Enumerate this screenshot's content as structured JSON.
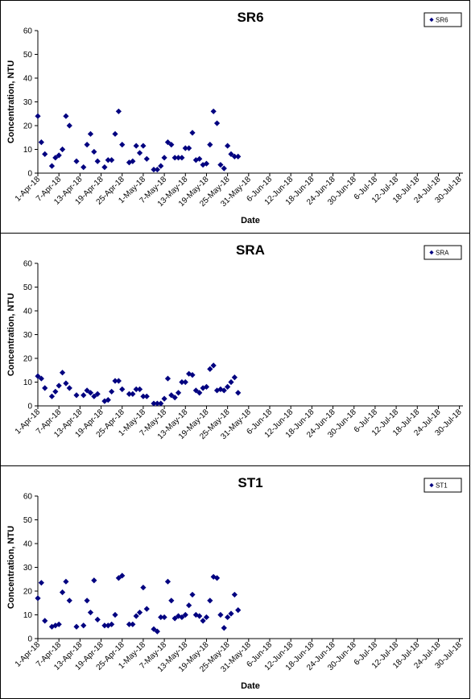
{
  "chart_data": [
    {
      "type": "scatter",
      "title": "SR6",
      "xlabel": "Date",
      "ylabel": "Concentration, NTU",
      "ylim": [
        0,
        60
      ],
      "yticks": [
        0,
        10,
        20,
        30,
        40,
        50,
        60
      ],
      "xlim": [
        "2018-04-01",
        "2018-07-31"
      ],
      "xtick_labels": [
        "1-Apr-18",
        "7-Apr-18",
        "13-Apr-18",
        "19-Apr-18",
        "25-Apr-18",
        "1-May-18",
        "7-May-18",
        "13-May-18",
        "19-May-18",
        "25-May-18",
        "31-May-18",
        "6-Jun-18",
        "12-Jun-18",
        "18-Jun-18",
        "24-Jun-18",
        "30-Jun-18",
        "6-Jul-18",
        "12-Jul-18",
        "18-Jul-18",
        "24-Jul-18",
        "30-Jul-18"
      ],
      "legend_position": "top-right",
      "marker_color": "#000080",
      "series": [
        {
          "name": "SR6",
          "points": [
            [
              "2018-04-01",
              24
            ],
            [
              "2018-04-02",
              13
            ],
            [
              "2018-04-03",
              8
            ],
            [
              "2018-04-05",
              3
            ],
            [
              "2018-04-06",
              6.5
            ],
            [
              "2018-04-07",
              7.5
            ],
            [
              "2018-04-08",
              10
            ],
            [
              "2018-04-09",
              24
            ],
            [
              "2018-04-10",
              20
            ],
            [
              "2018-04-12",
              5
            ],
            [
              "2018-04-14",
              2.5
            ],
            [
              "2018-04-15",
              12
            ],
            [
              "2018-04-16",
              16.5
            ],
            [
              "2018-04-17",
              9
            ],
            [
              "2018-04-18",
              5
            ],
            [
              "2018-04-20",
              2.5
            ],
            [
              "2018-04-21",
              5.5
            ],
            [
              "2018-04-22",
              5.5
            ],
            [
              "2018-04-23",
              16.5
            ],
            [
              "2018-04-24",
              26
            ],
            [
              "2018-04-25",
              12
            ],
            [
              "2018-04-27",
              4.5
            ],
            [
              "2018-04-28",
              5
            ],
            [
              "2018-04-29",
              11.5
            ],
            [
              "2018-04-30",
              8.5
            ],
            [
              "2018-05-01",
              11.5
            ],
            [
              "2018-05-02",
              6
            ],
            [
              "2018-05-04",
              1.5
            ],
            [
              "2018-05-05",
              1.5
            ],
            [
              "2018-05-06",
              3
            ],
            [
              "2018-05-07",
              6.5
            ],
            [
              "2018-05-08",
              13
            ],
            [
              "2018-05-09",
              12
            ],
            [
              "2018-05-10",
              6.5
            ],
            [
              "2018-05-11",
              6.5
            ],
            [
              "2018-05-12",
              6.5
            ],
            [
              "2018-05-13",
              10.5
            ],
            [
              "2018-05-14",
              10.5
            ],
            [
              "2018-05-15",
              17
            ],
            [
              "2018-05-16",
              5.5
            ],
            [
              "2018-05-17",
              6
            ],
            [
              "2018-05-18",
              3.5
            ],
            [
              "2018-05-19",
              4
            ],
            [
              "2018-05-20",
              12
            ],
            [
              "2018-05-21",
              26
            ],
            [
              "2018-05-22",
              21
            ],
            [
              "2018-05-23",
              3.5
            ],
            [
              "2018-05-24",
              2
            ],
            [
              "2018-05-25",
              11.5
            ],
            [
              "2018-05-26",
              8
            ],
            [
              "2018-05-27",
              7
            ],
            [
              "2018-05-28",
              7
            ]
          ]
        }
      ]
    },
    {
      "type": "scatter",
      "title": "SRA",
      "xlabel": "",
      "ylabel": "Concentration, NTU",
      "ylim": [
        0,
        60
      ],
      "yticks": [
        0,
        10,
        20,
        30,
        40,
        50,
        60
      ],
      "xlim": [
        "2018-04-01",
        "2018-07-31"
      ],
      "xtick_labels": [
        "1-Apr-18",
        "7-Apr-18",
        "13-Apr-18",
        "19-Apr-18",
        "25-Apr-18",
        "1-May-18",
        "7-May-18",
        "13-May-18",
        "19-May-18",
        "25-May-18",
        "31-May-18",
        "6-Jun-18",
        "12-Jun-18",
        "18-Jun-18",
        "24-Jun-18",
        "30-Jun-18",
        "6-Jul-18",
        "12-Jul-18",
        "18-Jul-18",
        "24-Jul-18",
        "30-Jul-18"
      ],
      "legend_position": "top-right",
      "marker_color": "#000080",
      "series": [
        {
          "name": "SRA",
          "points": [
            [
              "2018-04-01",
              12.5
            ],
            [
              "2018-04-02",
              11.5
            ],
            [
              "2018-04-03",
              7.5
            ],
            [
              "2018-04-05",
              4
            ],
            [
              "2018-04-06",
              6
            ],
            [
              "2018-04-07",
              8.5
            ],
            [
              "2018-04-08",
              14
            ],
            [
              "2018-04-09",
              9.5
            ],
            [
              "2018-04-10",
              7.5
            ],
            [
              "2018-04-12",
              4.5
            ],
            [
              "2018-04-14",
              4.5
            ],
            [
              "2018-04-15",
              6.5
            ],
            [
              "2018-04-16",
              5.5
            ],
            [
              "2018-04-17",
              4
            ],
            [
              "2018-04-18",
              5
            ],
            [
              "2018-04-20",
              2
            ],
            [
              "2018-04-21",
              2.5
            ],
            [
              "2018-04-22",
              6
            ],
            [
              "2018-04-23",
              10.5
            ],
            [
              "2018-04-24",
              10.5
            ],
            [
              "2018-04-25",
              7
            ],
            [
              "2018-04-27",
              5
            ],
            [
              "2018-04-28",
              5
            ],
            [
              "2018-04-29",
              7
            ],
            [
              "2018-04-30",
              7
            ],
            [
              "2018-05-01",
              4
            ],
            [
              "2018-05-02",
              4
            ],
            [
              "2018-05-04",
              1
            ],
            [
              "2018-05-05",
              1
            ],
            [
              "2018-05-06",
              1
            ],
            [
              "2018-05-07",
              3
            ],
            [
              "2018-05-08",
              11.5
            ],
            [
              "2018-05-09",
              4.5
            ],
            [
              "2018-05-10",
              3.5
            ],
            [
              "2018-05-11",
              5.5
            ],
            [
              "2018-05-12",
              10
            ],
            [
              "2018-05-13",
              10
            ],
            [
              "2018-05-14",
              13.5
            ],
            [
              "2018-05-15",
              13
            ],
            [
              "2018-05-16",
              6.5
            ],
            [
              "2018-05-17",
              5.5
            ],
            [
              "2018-05-18",
              7.5
            ],
            [
              "2018-05-19",
              8
            ],
            [
              "2018-05-20",
              15.5
            ],
            [
              "2018-05-21",
              17
            ],
            [
              "2018-05-22",
              6.5
            ],
            [
              "2018-05-23",
              7
            ],
            [
              "2018-05-24",
              6.5
            ],
            [
              "2018-05-25",
              8
            ],
            [
              "2018-05-26",
              10
            ],
            [
              "2018-05-27",
              12
            ],
            [
              "2018-05-28",
              5.5
            ]
          ]
        }
      ]
    },
    {
      "type": "scatter",
      "title": "ST1",
      "xlabel": "Date",
      "ylabel": "Concentration, NTU",
      "ylim": [
        0,
        60
      ],
      "yticks": [
        0,
        10,
        20,
        30,
        40,
        50,
        60
      ],
      "xlim": [
        "2018-04-01",
        "2018-07-31"
      ],
      "xtick_labels": [
        "1-Apr-18",
        "7-Apr-18",
        "13-Apr-18",
        "19-Apr-18",
        "25-Apr-18",
        "1-May-18",
        "7-May-18",
        "13-May-18",
        "19-May-18",
        "25-May-18",
        "31-May-18",
        "6-Jun-18",
        "12-Jun-18",
        "18-Jun-18",
        "24-Jun-18",
        "30-Jun-18",
        "6-Jul-18",
        "12-Jul-18",
        "18-Jul-18",
        "24-Jul-18",
        "30-Jul-18"
      ],
      "legend_position": "top-right",
      "marker_color": "#000080",
      "series": [
        {
          "name": "ST1",
          "points": [
            [
              "2018-04-01",
              17
            ],
            [
              "2018-04-02",
              23.5
            ],
            [
              "2018-04-03",
              7.5
            ],
            [
              "2018-04-05",
              5
            ],
            [
              "2018-04-06",
              5.5
            ],
            [
              "2018-04-07",
              6
            ],
            [
              "2018-04-08",
              19.5
            ],
            [
              "2018-04-09",
              24
            ],
            [
              "2018-04-10",
              16
            ],
            [
              "2018-04-12",
              5
            ],
            [
              "2018-04-14",
              5.5
            ],
            [
              "2018-04-15",
              16
            ],
            [
              "2018-04-16",
              11
            ],
            [
              "2018-04-17",
              24.5
            ],
            [
              "2018-04-18",
              8
            ],
            [
              "2018-04-20",
              5.5
            ],
            [
              "2018-04-21",
              5.5
            ],
            [
              "2018-04-22",
              6
            ],
            [
              "2018-04-23",
              10
            ],
            [
              "2018-04-24",
              25.5
            ],
            [
              "2018-04-25",
              26.5
            ],
            [
              "2018-04-27",
              6
            ],
            [
              "2018-04-28",
              6
            ],
            [
              "2018-04-29",
              9.5
            ],
            [
              "2018-04-30",
              11
            ],
            [
              "2018-05-01",
              21.5
            ],
            [
              "2018-05-02",
              12.5
            ],
            [
              "2018-05-04",
              4
            ],
            [
              "2018-05-05",
              3
            ],
            [
              "2018-05-06",
              9
            ],
            [
              "2018-05-07",
              9
            ],
            [
              "2018-05-08",
              24
            ],
            [
              "2018-05-09",
              16
            ],
            [
              "2018-05-10",
              8.5
            ],
            [
              "2018-05-11",
              9.5
            ],
            [
              "2018-05-12",
              9
            ],
            [
              "2018-05-13",
              10
            ],
            [
              "2018-05-14",
              14
            ],
            [
              "2018-05-15",
              18.5
            ],
            [
              "2018-05-16",
              10
            ],
            [
              "2018-05-17",
              9.5
            ],
            [
              "2018-05-18",
              7.5
            ],
            [
              "2018-05-19",
              9
            ],
            [
              "2018-05-20",
              16
            ],
            [
              "2018-05-21",
              26
            ],
            [
              "2018-05-22",
              25.5
            ],
            [
              "2018-05-23",
              10
            ],
            [
              "2018-05-24",
              4.5
            ],
            [
              "2018-05-25",
              9
            ],
            [
              "2018-05-26",
              10.5
            ],
            [
              "2018-05-27",
              18.5
            ],
            [
              "2018-05-28",
              12
            ]
          ]
        }
      ]
    }
  ]
}
